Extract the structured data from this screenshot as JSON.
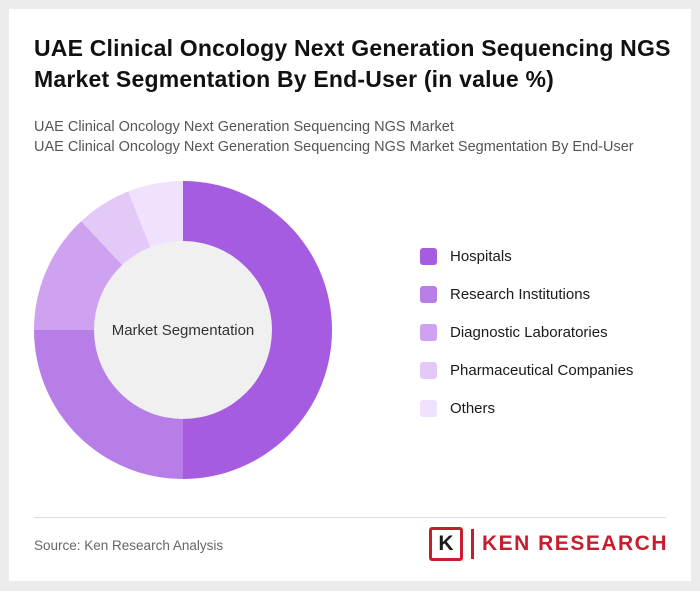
{
  "header": {
    "title": "UAE Clinical Oncology Next Generation Sequencing NGS Market Segmentation By End-User (in value %)",
    "subtitle_line1": "UAE Clinical Oncology Next Generation Sequencing NGS Market",
    "subtitle_line2": "UAE Clinical Oncology Next Generation Sequencing NGS Market Segmentation By End-User"
  },
  "chart_data": {
    "type": "pie",
    "donut": true,
    "title": "UAE Clinical Oncology Next Generation Sequencing NGS Market Segmentation By End-User (in value %)",
    "center_label": "Market Segmentation",
    "legend_position": "right",
    "start_angle_deg": 0,
    "direction": "clockwise",
    "center_fill": "#f0f0f0",
    "segments": [
      {
        "label": "Hospitals",
        "value": 50,
        "color": "#a55ce0"
      },
      {
        "label": "Research Institutions",
        "value": 25,
        "color": "#b77ee8"
      },
      {
        "label": "Diagnostic Laboratories",
        "value": 13,
        "color": "#cfa1f1"
      },
      {
        "label": "Pharmaceutical Companies",
        "value": 6,
        "color": "#e3c9f7"
      },
      {
        "label": "Others",
        "value": 6,
        "color": "#f0e2fc"
      }
    ]
  },
  "footer": {
    "source": "Source: Ken Research Analysis",
    "logo": {
      "letter": "K",
      "text": "KEN RESEARCH",
      "color": "#c41e2f"
    }
  }
}
